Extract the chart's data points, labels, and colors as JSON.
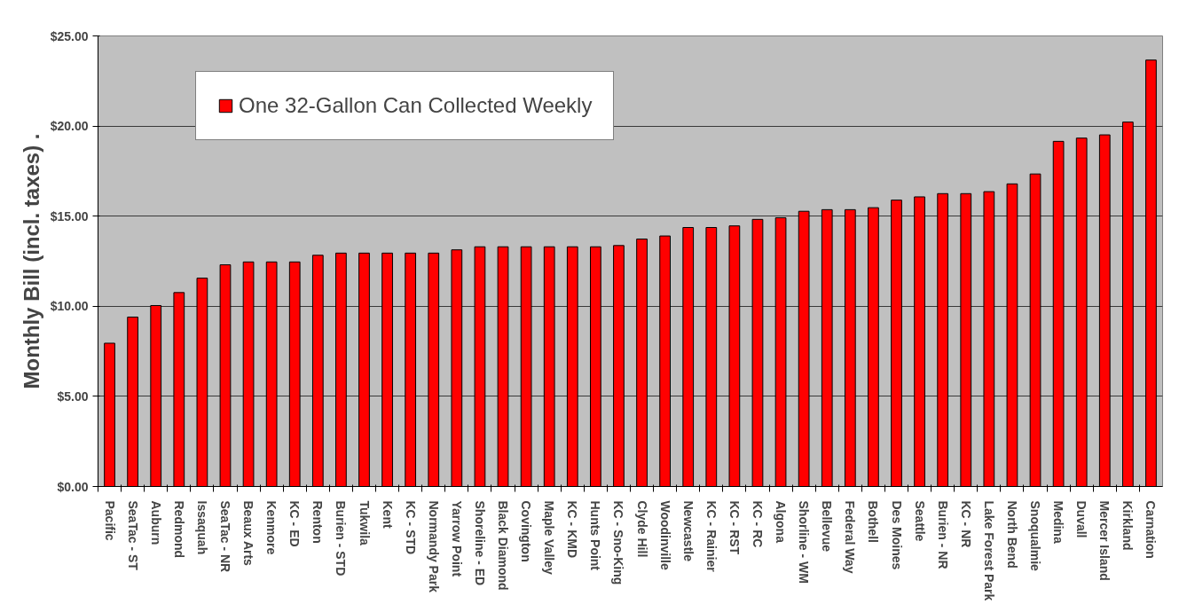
{
  "chart_data": {
    "type": "bar",
    "ylabel": "Monthly Bill (incl. taxes) .",
    "categories": [
      "Pacific",
      "SeaTac - ST",
      "Auburn",
      "Redmond",
      "Issaquah",
      "SeaTac - NR",
      "Beaux Arts",
      "Kenmore",
      "KC - ED",
      "Renton",
      "Burien - STD",
      "Tukwila",
      "Kent",
      "KC - STD",
      "Normandy Park",
      "Yarrow Point",
      "Shoreline - ED",
      "Black Diamond",
      "Covington",
      "Maple Valley",
      "KC - KMD",
      "Hunts Point",
      "KC - Sno-King",
      "Clyde Hill",
      "Woodinville",
      "Newcastle",
      "KC - Rainier",
      "KC - RST",
      "KC - RC",
      "Algona",
      "Shorline - WM",
      "Bellevue",
      "Federal Way",
      "Bothell",
      "Des Moines",
      "Seattle",
      "Burien - NR",
      "KC - NR",
      "Lake Forest Park",
      "North Bend",
      "Snoqualmie",
      "Medina",
      "Duvall",
      "Mercer Island",
      "Kirkland",
      "Carnation"
    ],
    "series": [
      {
        "name": "One 32-Gallon Can Collected Weekly",
        "color": "#ff0000",
        "values": [
          7.95,
          9.4,
          10.04,
          10.76,
          11.56,
          12.3,
          12.46,
          12.46,
          12.46,
          12.83,
          12.95,
          12.95,
          12.95,
          12.95,
          12.95,
          13.13,
          13.3,
          13.3,
          13.3,
          13.3,
          13.3,
          13.3,
          13.37,
          13.73,
          13.9,
          14.37,
          14.37,
          14.46,
          14.82,
          14.91,
          15.27,
          15.36,
          15.36,
          15.47,
          15.89,
          16.07,
          16.25,
          16.25,
          16.36,
          16.79,
          17.34,
          19.15,
          19.33,
          19.51,
          20.22,
          23.66
        ]
      }
    ],
    "ylim": [
      0,
      25
    ],
    "yticks": [
      {
        "value": 0,
        "label": "$0.00"
      },
      {
        "value": 5,
        "label": "$5.00"
      },
      {
        "value": 10,
        "label": "$10.00"
      },
      {
        "value": 15,
        "label": "$15.00"
      },
      {
        "value": 20,
        "label": "$20.00"
      },
      {
        "value": 25,
        "label": "$25.00"
      }
    ],
    "grid": "y",
    "legend": "top left"
  }
}
